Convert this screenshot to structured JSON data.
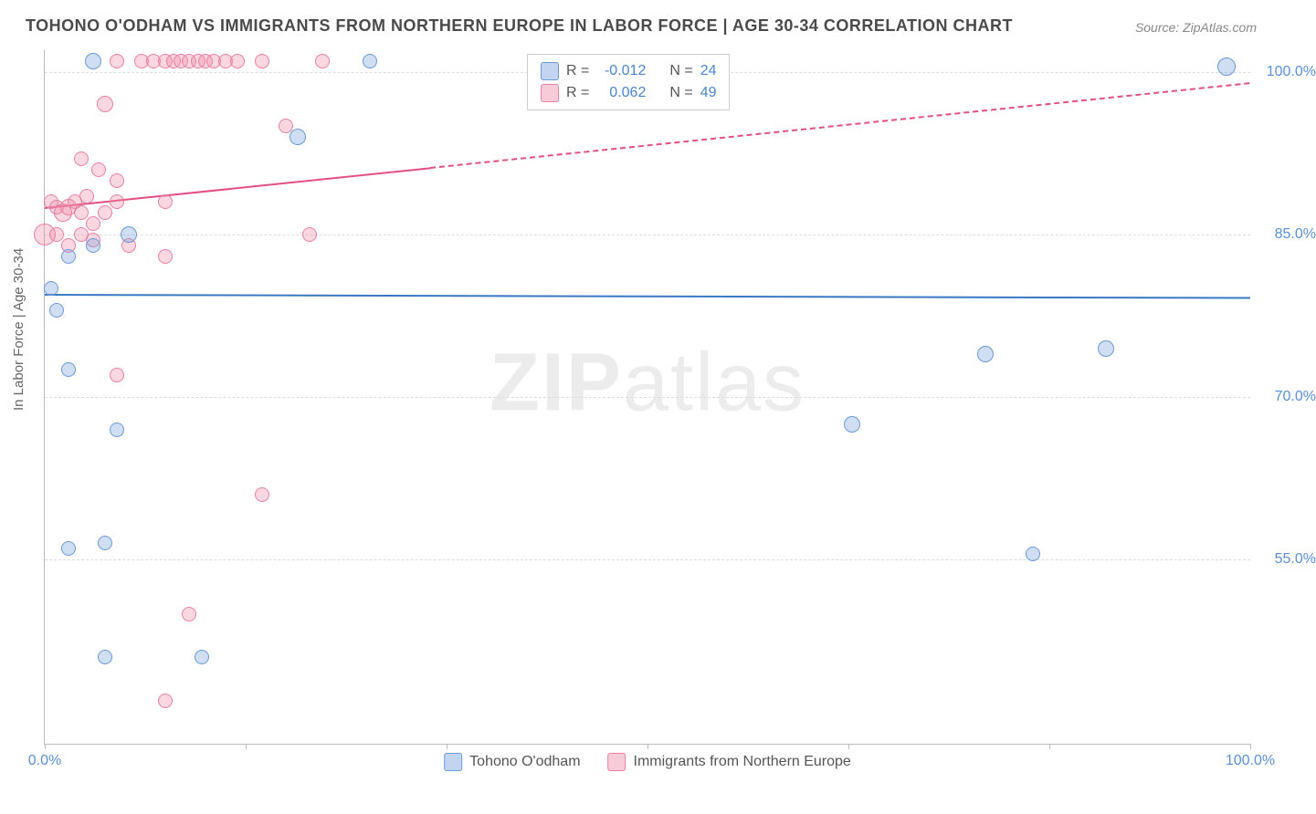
{
  "title": "TOHONO O'ODHAM VS IMMIGRANTS FROM NORTHERN EUROPE IN LABOR FORCE | AGE 30-34 CORRELATION CHART",
  "source": "Source: ZipAtlas.com",
  "y_axis_label": "In Labor Force | Age 30-34",
  "watermark_bold": "ZIP",
  "watermark_thin": "atlas",
  "plot": {
    "x_domain": [
      0,
      100
    ],
    "y_domain_top": 102,
    "y_domain_bottom": 38,
    "grid_color": "#dddddd",
    "axis_color": "#bbbbbb",
    "background": "#ffffff"
  },
  "y_ticks": [
    {
      "value": 100,
      "label": "100.0%"
    },
    {
      "value": 85,
      "label": "85.0%"
    },
    {
      "value": 70,
      "label": "70.0%"
    },
    {
      "value": 55,
      "label": "55.0%"
    }
  ],
  "y_tick_color": "#5b8fd6",
  "x_ticks_major": [
    0,
    16.67,
    33.33,
    50,
    66.67,
    83.33,
    100
  ],
  "x_tick_labels": [
    {
      "value": 0,
      "label": "0.0%"
    },
    {
      "value": 100,
      "label": "100.0%"
    }
  ],
  "x_tick_color": "#5b8fd6",
  "series": [
    {
      "name": "Tohono O'odham",
      "color_fill": "rgba(120,160,220,0.35)",
      "color_stroke": "#6a99d8",
      "trend": {
        "x1": 0,
        "y1": 79.5,
        "x2": 100,
        "y2": 79.2,
        "dash_after_x": null,
        "color": "#3b78c4",
        "width": 2.5
      },
      "points": [
        {
          "x": 4,
          "y": 101,
          "r": 9
        },
        {
          "x": 21,
          "y": 94,
          "r": 9
        },
        {
          "x": 27,
          "y": 101,
          "r": 8
        },
        {
          "x": 98,
          "y": 100.5,
          "r": 10
        },
        {
          "x": 2,
          "y": 83,
          "r": 8
        },
        {
          "x": 4,
          "y": 84,
          "r": 8
        },
        {
          "x": 7,
          "y": 85,
          "r": 9
        },
        {
          "x": 0.5,
          "y": 80,
          "r": 8
        },
        {
          "x": 1,
          "y": 78,
          "r": 8
        },
        {
          "x": 2,
          "y": 72.5,
          "r": 8
        },
        {
          "x": 6,
          "y": 67,
          "r": 8
        },
        {
          "x": 78,
          "y": 74,
          "r": 9
        },
        {
          "x": 88,
          "y": 74.5,
          "r": 9
        },
        {
          "x": 67,
          "y": 67.5,
          "r": 9
        },
        {
          "x": 82,
          "y": 55.5,
          "r": 8
        },
        {
          "x": 2,
          "y": 56,
          "r": 8
        },
        {
          "x": 5,
          "y": 56.5,
          "r": 8
        },
        {
          "x": 5,
          "y": 46,
          "r": 8
        },
        {
          "x": 13,
          "y": 46,
          "r": 8
        }
      ]
    },
    {
      "name": "Immigrants from Northern Europe",
      "color_fill": "rgba(240,140,170,0.35)",
      "color_stroke": "#e87fa3",
      "trend": {
        "x1": 0,
        "y1": 87.5,
        "x2": 100,
        "y2": 99,
        "dash_after_x": 32,
        "color": "#e24f84",
        "width": 2.5
      },
      "points": [
        {
          "x": 6,
          "y": 101,
          "r": 8
        },
        {
          "x": 8,
          "y": 101,
          "r": 8
        },
        {
          "x": 9,
          "y": 101,
          "r": 8
        },
        {
          "x": 10,
          "y": 101,
          "r": 8
        },
        {
          "x": 10.7,
          "y": 101,
          "r": 8
        },
        {
          "x": 11.3,
          "y": 101,
          "r": 8
        },
        {
          "x": 12,
          "y": 101,
          "r": 8
        },
        {
          "x": 12.7,
          "y": 101,
          "r": 8
        },
        {
          "x": 13.3,
          "y": 101,
          "r": 8
        },
        {
          "x": 14,
          "y": 101,
          "r": 8
        },
        {
          "x": 15,
          "y": 101,
          "r": 8
        },
        {
          "x": 16,
          "y": 101,
          "r": 8
        },
        {
          "x": 18,
          "y": 101,
          "r": 8
        },
        {
          "x": 23,
          "y": 101,
          "r": 8
        },
        {
          "x": 5,
          "y": 97,
          "r": 9
        },
        {
          "x": 20,
          "y": 95,
          "r": 8
        },
        {
          "x": 3,
          "y": 92,
          "r": 8
        },
        {
          "x": 4.5,
          "y": 91,
          "r": 8
        },
        {
          "x": 6,
          "y": 90,
          "r": 8
        },
        {
          "x": 0.5,
          "y": 88,
          "r": 8
        },
        {
          "x": 1,
          "y": 87.5,
          "r": 8
        },
        {
          "x": 1.5,
          "y": 87,
          "r": 10
        },
        {
          "x": 2,
          "y": 87.5,
          "r": 9
        },
        {
          "x": 2.5,
          "y": 88,
          "r": 8
        },
        {
          "x": 3,
          "y": 87,
          "r": 8
        },
        {
          "x": 3.5,
          "y": 88.5,
          "r": 8
        },
        {
          "x": 4,
          "y": 86,
          "r": 8
        },
        {
          "x": 5,
          "y": 87,
          "r": 8
        },
        {
          "x": 6,
          "y": 88,
          "r": 8
        },
        {
          "x": 10,
          "y": 88,
          "r": 8
        },
        {
          "x": 0,
          "y": 85,
          "r": 12
        },
        {
          "x": 1,
          "y": 85,
          "r": 8
        },
        {
          "x": 2,
          "y": 84,
          "r": 8
        },
        {
          "x": 3,
          "y": 85,
          "r": 8
        },
        {
          "x": 4,
          "y": 84.5,
          "r": 8
        },
        {
          "x": 7,
          "y": 84,
          "r": 8
        },
        {
          "x": 10,
          "y": 83,
          "r": 8
        },
        {
          "x": 22,
          "y": 85,
          "r": 8
        },
        {
          "x": 6,
          "y": 72,
          "r": 8
        },
        {
          "x": 18,
          "y": 61,
          "r": 8
        },
        {
          "x": 12,
          "y": 50,
          "r": 8
        },
        {
          "x": 10,
          "y": 42,
          "r": 8
        }
      ]
    }
  ],
  "legend_top": {
    "rows": [
      {
        "swatch_fill": "rgba(120,160,220,0.45)",
        "swatch_stroke": "#6a99d8",
        "r_label": "R =",
        "r_value": "-0.012",
        "n_label": "N =",
        "n_value": "24"
      },
      {
        "swatch_fill": "rgba(240,140,170,0.45)",
        "swatch_stroke": "#e87fa3",
        "r_label": "R =",
        "r_value": "0.062",
        "n_label": "N =",
        "n_value": "49"
      }
    ],
    "value_color": "#4a86d0"
  },
  "legend_bottom": {
    "items": [
      {
        "swatch_fill": "rgba(120,160,220,0.45)",
        "swatch_stroke": "#6a99d8",
        "label": "Tohono O'odham"
      },
      {
        "swatch_fill": "rgba(240,140,170,0.45)",
        "swatch_stroke": "#e87fa3",
        "label": "Immigrants from Northern Europe"
      }
    ]
  }
}
